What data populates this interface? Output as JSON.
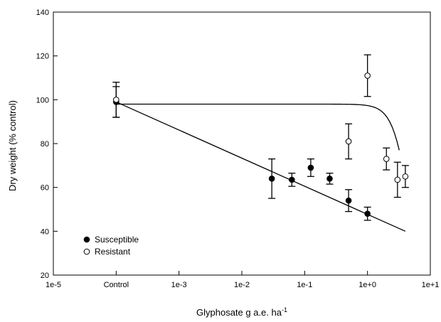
{
  "chart_data": {
    "type": "scatter",
    "xlabel": "Glyphosate g a.e. ha",
    "xlabel_superscript": "-1",
    "ylabel": "Dry weight (% control)",
    "xscale": "log",
    "xlim": [
      1e-05,
      10
    ],
    "ylim": [
      20,
      140
    ],
    "x_tick_labels": [
      "1e-5",
      "Control",
      "1e-3",
      "1e-2",
      "1e-1",
      "1e+0",
      "1e+1"
    ],
    "x_tick_values": [
      1e-05,
      0.0001,
      0.001,
      0.01,
      0.1,
      1,
      10
    ],
    "y_ticks": [
      20,
      40,
      60,
      80,
      100,
      120,
      140
    ],
    "grid": false,
    "legend_position": "bottom-left",
    "series": [
      {
        "name": "Susceptible",
        "marker": "filled-circle",
        "points": [
          {
            "x": 0.0001,
            "y": 99,
            "err": 7
          },
          {
            "x": 0.03,
            "y": 64,
            "err": 9
          },
          {
            "x": 0.0625,
            "y": 63.5,
            "err": 3
          },
          {
            "x": 0.125,
            "y": 69,
            "err": 4
          },
          {
            "x": 0.25,
            "y": 64,
            "err": 2.5
          },
          {
            "x": 0.5,
            "y": 54,
            "err": 5
          },
          {
            "x": 1,
            "y": 48,
            "err": 3
          }
        ],
        "fit": {
          "kind": "log-linear",
          "x_start": 0.0001,
          "y_start": 99,
          "x_end": 4,
          "y_end": 40
        }
      },
      {
        "name": "Resistant",
        "marker": "open-circle",
        "points": [
          {
            "x": 0.0001,
            "y": 100,
            "err": 8
          },
          {
            "x": 0.5,
            "y": 81,
            "err": 8
          },
          {
            "x": 1,
            "y": 111,
            "err": 9.5
          },
          {
            "x": 2,
            "y": 73,
            "err": 5
          },
          {
            "x": 3,
            "y": 63.5,
            "err": 8
          },
          {
            "x": 4,
            "y": 65,
            "err": 5
          }
        ],
        "fit": {
          "kind": "log-logistic",
          "upper": 98,
          "lower": 0,
          "ed50": 4.8,
          "slope": 3.2,
          "x_start": 0.0001,
          "x_end": 3.2
        }
      }
    ]
  }
}
